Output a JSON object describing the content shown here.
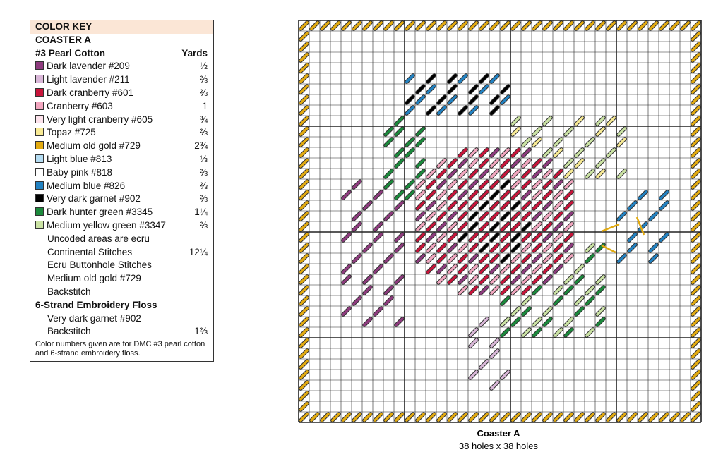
{
  "key": {
    "title": "COLOR KEY",
    "subtitle": "COASTER A",
    "section1": "#3 Pearl Cotton",
    "yards_header": "Yards",
    "rows": [
      {
        "name": "Dark lavender #209",
        "yards": "½",
        "color": "#8e3b7e"
      },
      {
        "name": "Light lavender #211",
        "yards": "⅔",
        "color": "#d9b7d8"
      },
      {
        "name": "Dark cranberry #601",
        "yards": "⅔",
        "color": "#c8143a"
      },
      {
        "name": "Cranberry #603",
        "yards": "1",
        "color": "#f2a6bf"
      },
      {
        "name": "Very light cranberry #605",
        "yards": "¾",
        "color": "#fde3ec"
      },
      {
        "name": "Topaz #725",
        "yards": "⅔",
        "color": "#f8ea94"
      },
      {
        "name": "Medium old gold #729",
        "yards": "2¾",
        "color": "#e2aa10"
      },
      {
        "name": "Light blue #813",
        "yards": "⅓",
        "color": "#b4dcf2"
      },
      {
        "name": "Baby pink #818",
        "yards": "⅔",
        "color": "#ffffff"
      },
      {
        "name": "Medium blue #826",
        "yards": "⅔",
        "color": "#2282c2"
      },
      {
        "name": "Very dark garnet #902",
        "yards": "⅔",
        "color": "#000000"
      },
      {
        "name": "Dark hunter green #3345",
        "yards": "1¼",
        "color": "#1b8a3c"
      },
      {
        "name": "Medium yellow green #3347",
        "yards": "⅔",
        "color": "#cbe3a4"
      }
    ],
    "uncoded_line1": "Uncoded areas are ecru",
    "uncoded_line2": "Continental Stitches",
    "uncoded_yards": "12¼",
    "buttonhole": "Ecru Buttonhole Stitches",
    "backstitch1_line1": "Medium old gold #729",
    "backstitch1_line2": "Backstitch",
    "section2": "6-Strand Embroidery Floss",
    "floss_line1": "Very dark garnet #902",
    "floss_line2": "Backstitch",
    "floss_yards": "1⅔",
    "note": "Color numbers given are for DMC #3 pearl cotton and 6-strand embroidery floss."
  },
  "chart": {
    "caption": "Coaster A",
    "size": "38 holes x 38 holes"
  }
}
